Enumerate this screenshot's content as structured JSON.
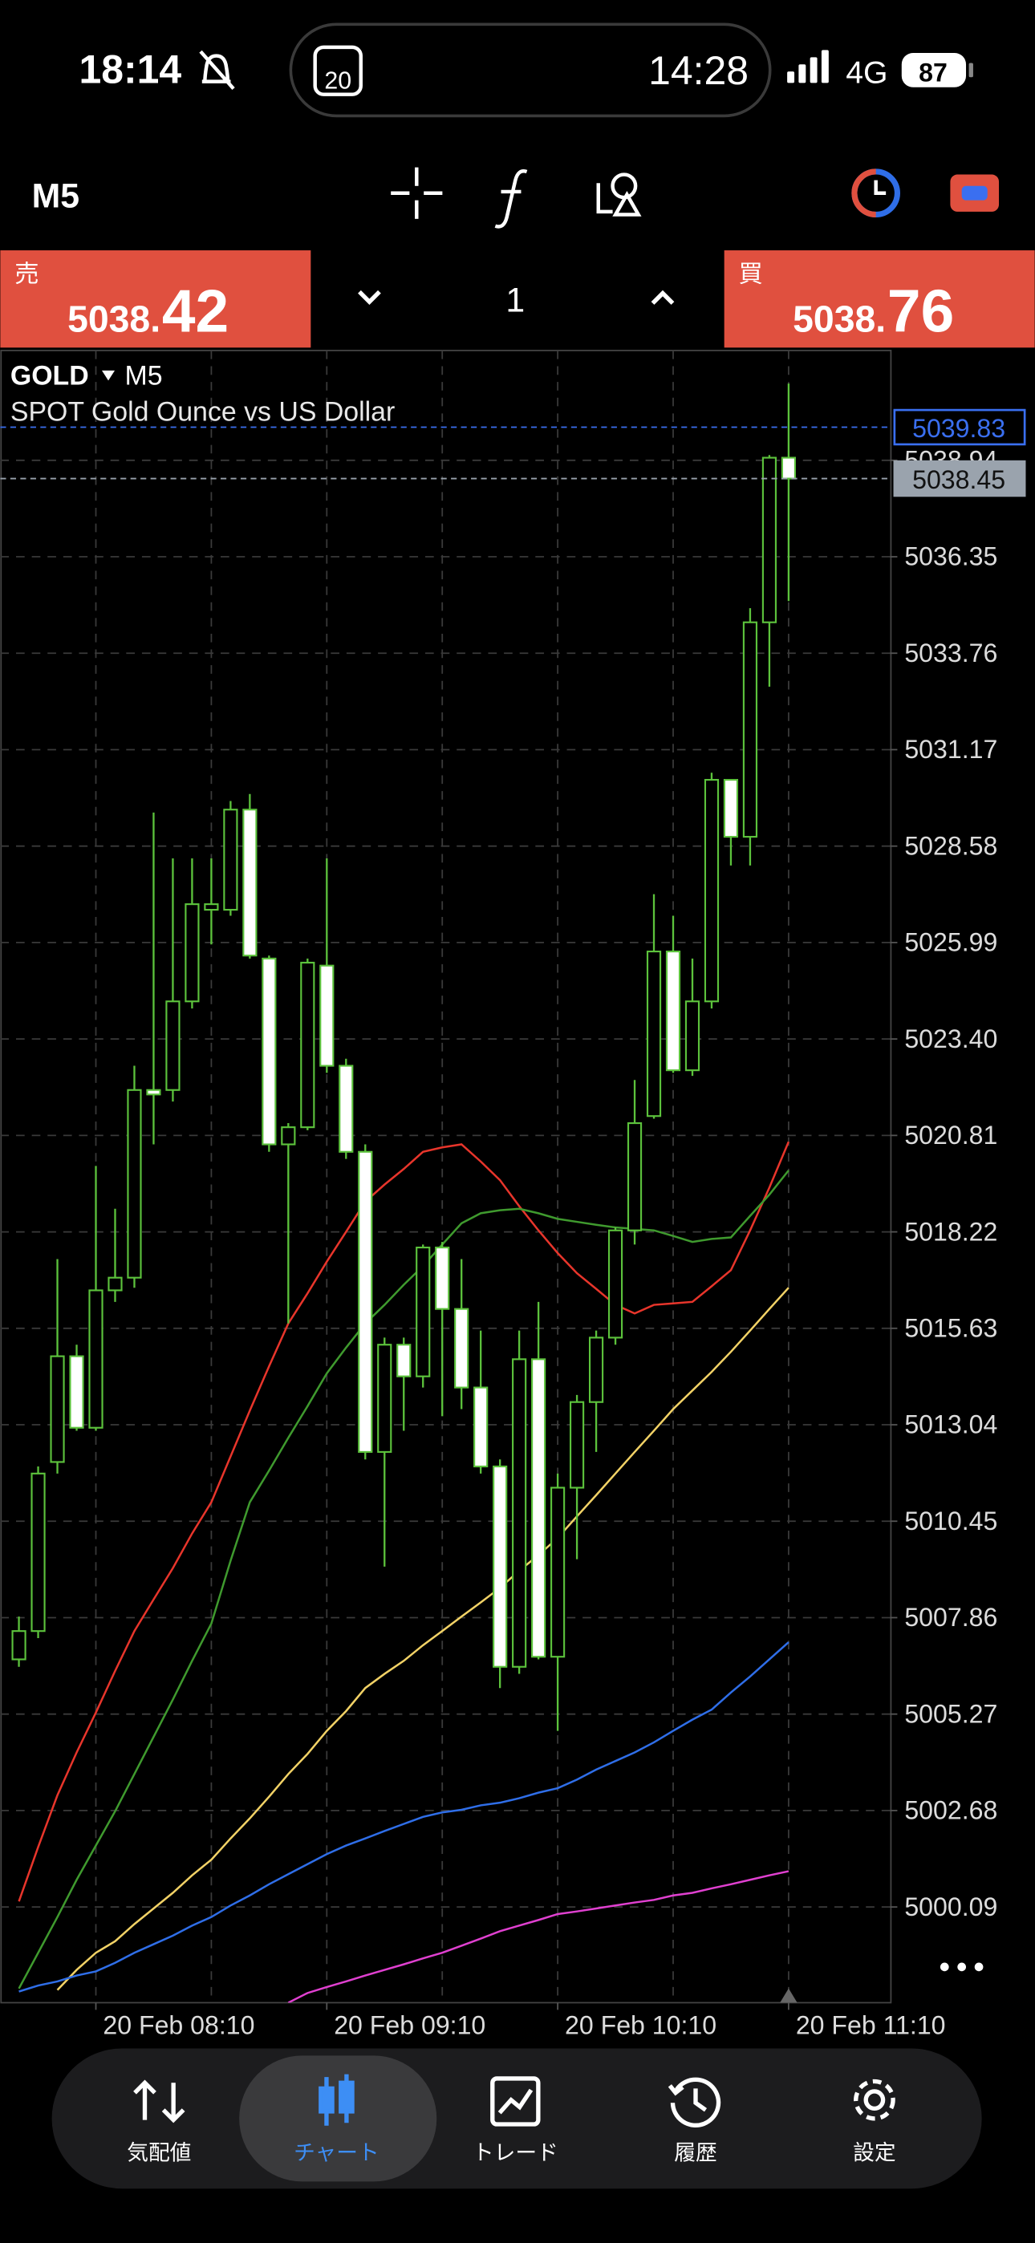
{
  "status_bar": {
    "time": "18:14",
    "calendar_day": "20",
    "island_time": "14:28",
    "network": "4G",
    "battery": "87"
  },
  "toolbar": {
    "timeframe": "M5"
  },
  "trade_panel": {
    "sell": {
      "label": "売",
      "price_prefix": "5038.",
      "price_suffix": "42"
    },
    "volume": "1",
    "buy": {
      "label": "買",
      "price_prefix": "5038.",
      "price_suffix": "76"
    }
  },
  "nav": {
    "items": [
      "気配値",
      "チャート",
      "トレード",
      "履歴",
      "設定"
    ],
    "active": 1
  },
  "chart_data": {
    "type": "candlestick",
    "symbol": "GOLD",
    "timeframe": "M5",
    "title": "SPOT Gold Ounce vs US Dollar",
    "x": [
      null,
      null,
      null,
      null,
      "20 Feb 08:10",
      null,
      null,
      null,
      null,
      null,
      null,
      null,
      null,
      null,
      null,
      null,
      "20 Feb 09:10",
      null,
      null,
      null,
      null,
      null,
      null,
      null,
      null,
      null,
      null,
      null,
      "20 Feb 10:10",
      null,
      null,
      null,
      null,
      null,
      null,
      null,
      null,
      null,
      null,
      null,
      "20 Feb 11:10"
    ],
    "open": [
      5006.74,
      5007.5,
      5012.04,
      5014.88,
      5012.96,
      5016.65,
      5016.99,
      5022.03,
      5022.03,
      5024.41,
      5026.87,
      5026.87,
      5029.56,
      5025.56,
      5020.57,
      5021.03,
      5025.37,
      5022.68,
      5020.37,
      5012.31,
      5015.19,
      5014.34,
      5017.8,
      5016.15,
      5014.04,
      5011.92,
      5006.54,
      5014.8,
      5006.81,
      5011.35,
      5013.65,
      5015.38,
      5018.26,
      5021.33,
      5025.75,
      5022.56,
      5024.41,
      5030.36,
      5028.83,
      5034.59,
      5039.01
    ],
    "high": [
      5007.89,
      5011.92,
      5017.49,
      5015.19,
      5019.99,
      5018.84,
      5022.68,
      5029.48,
      5028.25,
      5028.25,
      5028.25,
      5029.79,
      5029.98,
      5025.64,
      5021.14,
      5025.56,
      5028.25,
      5022.87,
      5020.57,
      5015.38,
      5015.38,
      5017.88,
      5017.95,
      5017.49,
      5015.57,
      5012.11,
      5015.57,
      5016.34,
      5011.73,
      5013.84,
      5015.57,
      5018.34,
      5022.3,
      5027.29,
      5026.71,
      5025.56,
      5030.55,
      5030.36,
      5034.97,
      5039.08,
      5041.0
    ],
    "low": [
      5006.54,
      5007.31,
      5011.73,
      5012.88,
      5012.88,
      5016.34,
      5016.72,
      5020.57,
      5021.72,
      5024.22,
      5025.94,
      5026.71,
      5025.56,
      5020.37,
      5015.76,
      5020.95,
      5022.49,
      5020.18,
      5012.11,
      5009.23,
      5012.88,
      5014.04,
      5013.27,
      5013.46,
      5011.73,
      5005.97,
      5006.35,
      5006.74,
      5004.82,
      5009.43,
      5012.31,
      5015.19,
      5017.88,
      5021.26,
      5022.49,
      5022.41,
      5024.22,
      5028.06,
      5028.06,
      5032.86,
      5035.16
    ],
    "close": [
      5007.5,
      5011.73,
      5014.88,
      5012.96,
      5016.65,
      5016.99,
      5022.03,
      5021.91,
      5024.41,
      5027.02,
      5027.02,
      5029.56,
      5025.64,
      5020.57,
      5021.03,
      5025.45,
      5022.68,
      5020.37,
      5012.31,
      5015.19,
      5014.34,
      5017.8,
      5016.15,
      5014.04,
      5011.92,
      5006.54,
      5014.8,
      5006.81,
      5011.35,
      5013.65,
      5015.38,
      5018.26,
      5021.14,
      5025.75,
      5022.56,
      5024.41,
      5030.36,
      5028.83,
      5034.59,
      5039.01,
      5038.45
    ],
    "wick_color": "#5cc23c",
    "bull_fill": "#000000",
    "bear_fill": "#ffffff",
    "series": [
      {
        "color": "#e8352b",
        "values": [
          5000.24,
          5001.7,
          5003.09,
          5004.24,
          5005.31,
          5006.43,
          5007.5,
          5008.35,
          5009.19,
          5010.12,
          5010.96,
          5012.19,
          5013.42,
          5014.61,
          5015.76,
          5016.57,
          5017.42,
          5018.22,
          5019.03,
          5019.49,
          5019.91,
          5020.37,
          5020.49,
          5020.57,
          5020.11,
          5019.61,
          5018.91,
          5018.26,
          5017.65,
          5017.11,
          5016.69,
          5016.26,
          5016.03,
          5016.26,
          5016.3,
          5016.34,
          5016.76,
          5017.19,
          5018.26,
          5019.41,
          5020.64
        ]
      },
      {
        "color": "#3f9a2e",
        "values": [
          4997.9,
          4998.86,
          4999.82,
          5000.82,
          5001.74,
          5002.66,
          5003.66,
          5004.66,
          5005.66,
          5006.7,
          5007.7,
          5009.39,
          5010.96,
          5011.81,
          5012.69,
          5013.54,
          5014.42,
          5015.11,
          5015.76,
          5016.26,
          5016.8,
          5017.3,
          5017.88,
          5018.45,
          5018.72,
          5018.8,
          5018.84,
          5018.72,
          5018.57,
          5018.49,
          5018.41,
          5018.34,
          5018.3,
          5018.26,
          5018.11,
          5017.95,
          5018.03,
          5018.07,
          5018.65,
          5019.22,
          5019.87
        ]
      },
      {
        "color": "#f2d266",
        "values": [
          null,
          null,
          4997.86,
          4998.4,
          4998.86,
          4999.17,
          4999.63,
          5000.05,
          5000.47,
          5000.94,
          5001.36,
          5001.93,
          5002.47,
          5003.05,
          5003.66,
          5004.2,
          5004.82,
          5005.35,
          5005.97,
          5006.35,
          5006.7,
          5007.12,
          5007.5,
          5007.89,
          5008.27,
          5008.66,
          5009.12,
          5009.54,
          5010.0,
          5010.58,
          5011.15,
          5011.73,
          5012.31,
          5012.88,
          5013.46,
          5013.96,
          5014.46,
          5015.0,
          5015.57,
          5016.15,
          5016.72
        ]
      },
      {
        "color": "#2f6ee8",
        "values": [
          4997.82,
          4997.98,
          4998.09,
          4998.25,
          4998.36,
          4998.59,
          4998.86,
          4999.09,
          4999.32,
          4999.59,
          4999.82,
          5000.13,
          5000.4,
          5000.7,
          5000.97,
          5001.24,
          5001.51,
          5001.74,
          5001.93,
          5002.13,
          5002.32,
          5002.51,
          5002.63,
          5002.7,
          5002.82,
          5002.89,
          5003.01,
          5003.16,
          5003.28,
          5003.51,
          5003.78,
          5004.01,
          5004.24,
          5004.51,
          5004.82,
          5005.12,
          5005.39,
          5005.85,
          5006.28,
          5006.74,
          5007.2
        ]
      },
      {
        "color": "#e040d0",
        "values": [
          null,
          null,
          null,
          null,
          null,
          null,
          null,
          null,
          null,
          null,
          null,
          null,
          null,
          null,
          4997.52,
          4997.78,
          4997.94,
          4998.09,
          4998.25,
          4998.4,
          4998.55,
          4998.71,
          4998.86,
          4999.05,
          4999.24,
          4999.44,
          4999.59,
          4999.74,
          4999.9,
          4999.97,
          5000.05,
          5000.13,
          5000.21,
          5000.28,
          5000.4,
          5000.47,
          5000.59,
          5000.7,
          5000.82,
          5000.94,
          5001.05
        ]
      }
    ],
    "price_lines": [
      {
        "value": 5039.83,
        "color": "#3a6ff0",
        "filled": false
      },
      {
        "value": 5038.45,
        "color": "#9aa3ad",
        "filled": true
      }
    ],
    "ylim": [
      4997.52,
      5041.89
    ],
    "yticks": [
      5038.94,
      5036.35,
      5033.76,
      5031.17,
      5028.58,
      5025.99,
      {
        "value": 5023.4,
        "label": "5023.40"
      },
      5020.81,
      5018.22,
      5015.63,
      5013.04,
      5010.45,
      5007.86,
      5005.27,
      5002.68,
      5000.09
    ],
    "grid": true
  }
}
